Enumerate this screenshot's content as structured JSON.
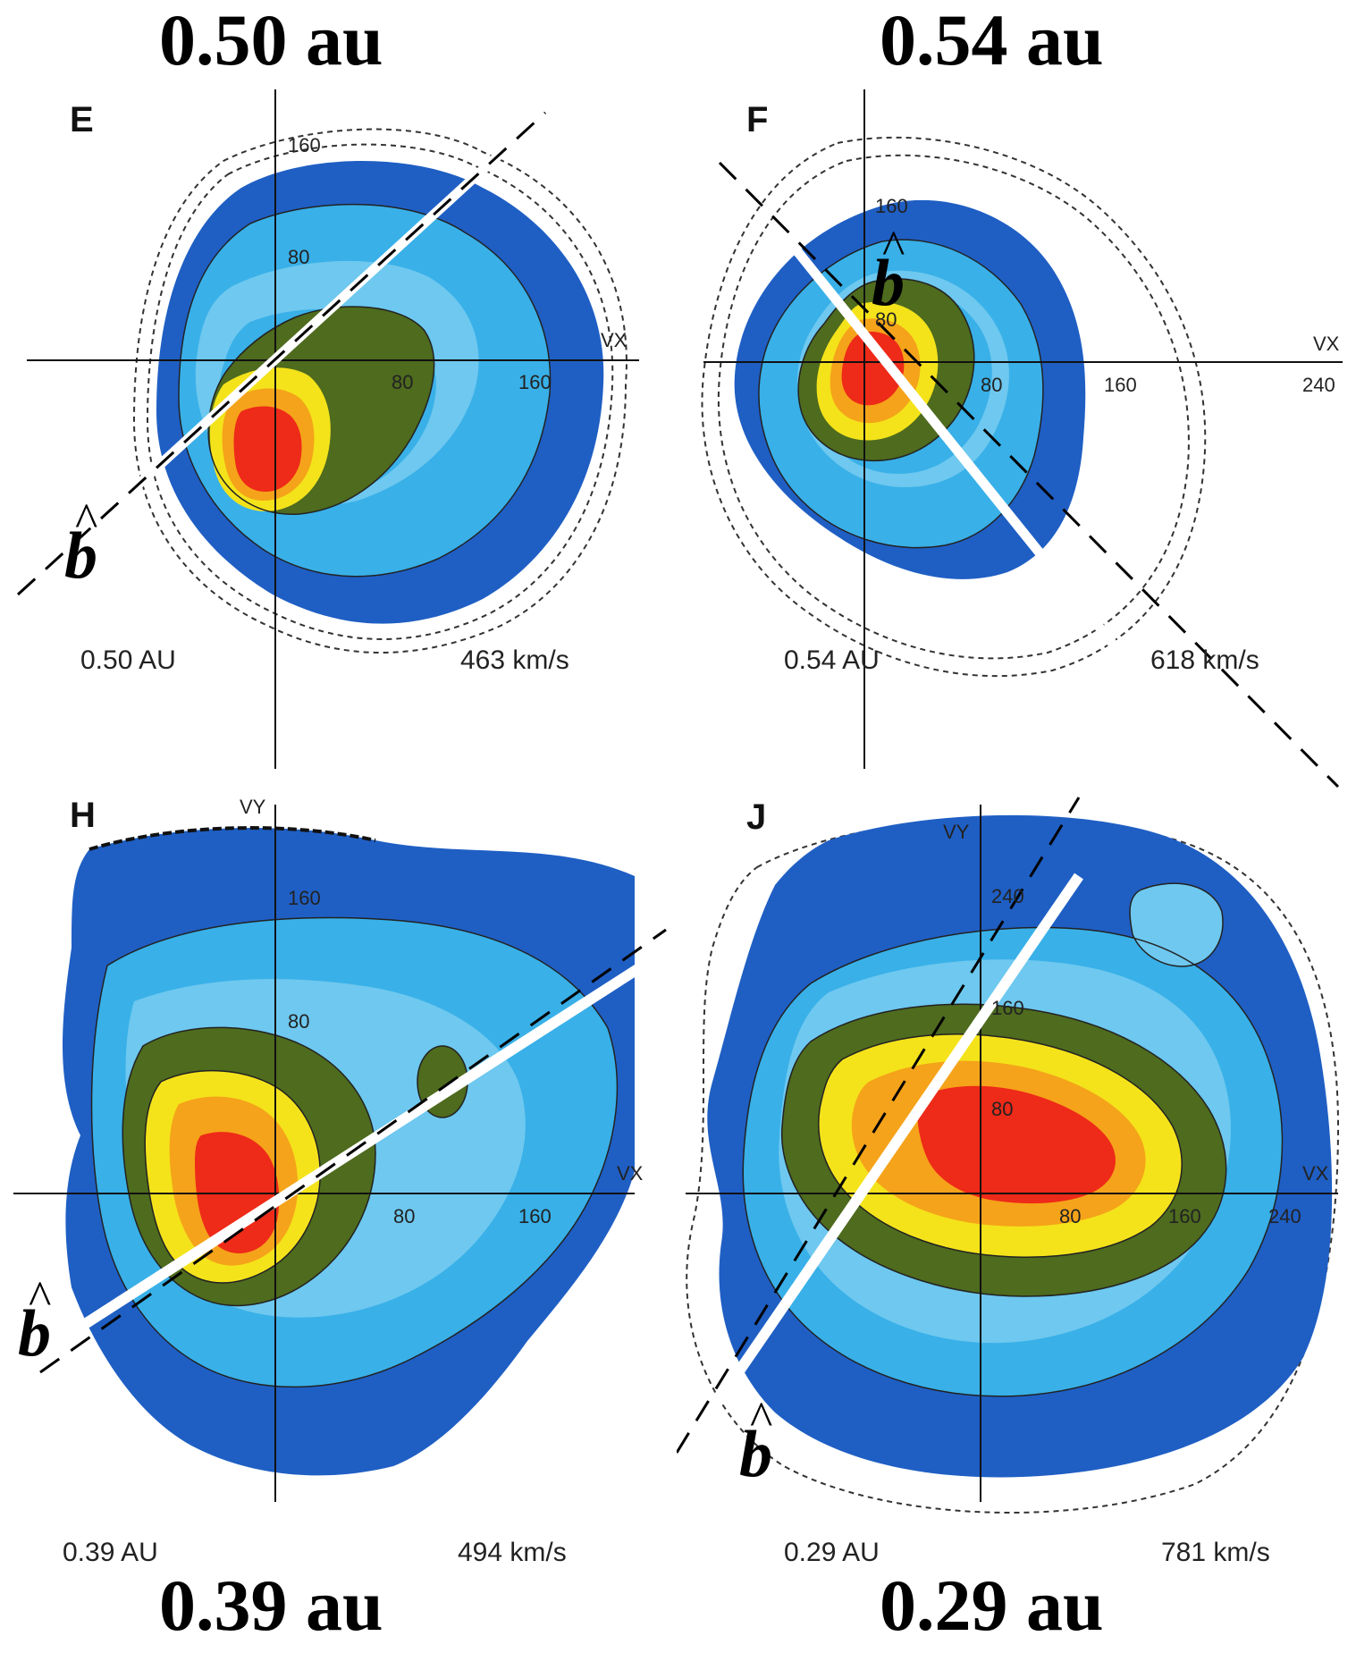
{
  "titles": {
    "top_left": "0.50 au",
    "top_right": "0.54 au",
    "bottom_left": "0.39 au",
    "bottom_right": "0.29 au"
  },
  "panels": [
    {
      "letter": "E",
      "distance": "0.50 AU",
      "speed": "463 km/s",
      "axis_x": "VX",
      "ticks": [
        "160",
        "80",
        "80",
        "160"
      ],
      "field_symbol": "b"
    },
    {
      "letter": "F",
      "distance": "0.54 AU",
      "speed": "618 km/s",
      "axis_x": "VX",
      "ticks": [
        "160",
        "80",
        "80",
        "160",
        "240"
      ],
      "field_symbol": "b"
    },
    {
      "letter": "H",
      "distance": "0.39 AU",
      "speed": "494 km/s",
      "axis_x": "VX",
      "axis_y": "VY",
      "ticks": [
        "160",
        "80",
        "80",
        "160"
      ],
      "field_symbol": "b"
    },
    {
      "letter": "J",
      "distance": "0.29 AU",
      "speed": "781 km/s",
      "axis_x": "VX",
      "axis_y": "VY",
      "ticks": [
        "240",
        "160",
        "80",
        "80",
        "160",
        "240"
      ],
      "field_symbol": "b"
    }
  ],
  "colors": {
    "level1": "#1f5fc4",
    "level2": "#2e86e0",
    "level3": "#39b0e8",
    "level4": "#6ec8ef",
    "level5": "#4e6b1e",
    "level6": "#f4e31a",
    "level7": "#f5a31a",
    "level8": "#ee2a18"
  }
}
